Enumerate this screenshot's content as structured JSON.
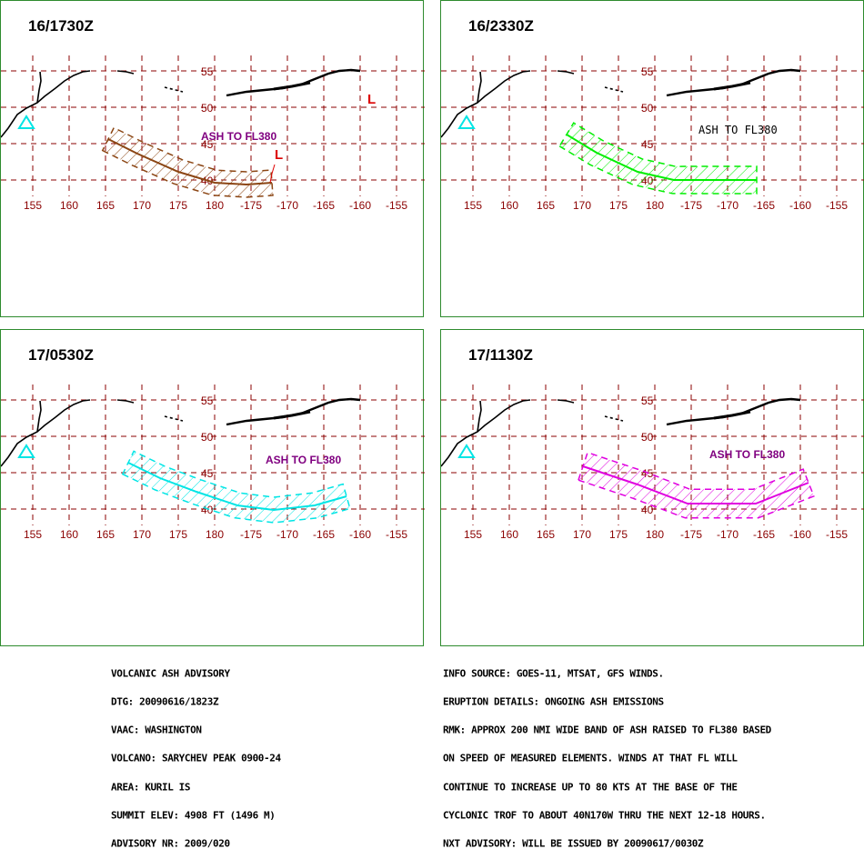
{
  "panels": [
    {
      "time": "16/1730Z",
      "ash_label": "ASH TO FL380",
      "color": "#8b4513",
      "label_color": "#800080"
    },
    {
      "time": "16/2330Z",
      "ash_label": "ASH TO FL380",
      "color": "#00ee00",
      "label_color": "#000000"
    },
    {
      "time": "17/0530Z",
      "ash_label": "ASH TO FL380",
      "color": "#00e5e5",
      "label_color": "#800080"
    },
    {
      "time": "17/1130Z",
      "ash_label": "ASH TO FL380",
      "color": "#e000e0",
      "label_color": "#800080"
    }
  ],
  "map": {
    "lat_labels": [
      "55",
      "50",
      "45",
      "40"
    ],
    "lon_labels": [
      "155",
      "160",
      "165",
      "170",
      "175",
      "180",
      "-175",
      "-170",
      "-165",
      "-160",
      "-155"
    ],
    "grid_color": "#8b0000",
    "volcano_icon": "triangle-volcano-icon",
    "volcano_color": "#00e5e5",
    "low_marker": "L",
    "low_color": "#dd0000"
  },
  "advisory": {
    "lines": [
      "VOLCANIC ASH ADVISORY",
      "DTG: 20090616/1823Z",
      "VAAC: WASHINGTON",
      "VOLCANO: SARYCHEV PEAK 0900-24",
      "AREA: KURIL IS",
      "SUMMIT ELEV: 4908 FT (1496 M)",
      "ADVISORY NR: 2009/020"
    ]
  },
  "info": {
    "lines": [
      "INFO SOURCE: GOES-11, MTSAT, GFS WINDS.",
      "ERUPTION DETAILS: ONGOING ASH EMISSIONS",
      "RMK: APPROX 200 NMI WIDE BAND OF ASH RAISED TO FL380 BASED",
      "ON SPEED OF MEASURED ELEMENTS. WINDS AT THAT FL WILL",
      "CONTINUE TO INCREASE UP TO 80 KTS AT THE BASE OF THE",
      "CYCLONIC TROF TO ABOUT 40N170W THRU THE NEXT 12-18 HOURS.",
      "NXT ADVISORY: WILL BE ISSUED BY 20090617/0030Z"
    ]
  }
}
